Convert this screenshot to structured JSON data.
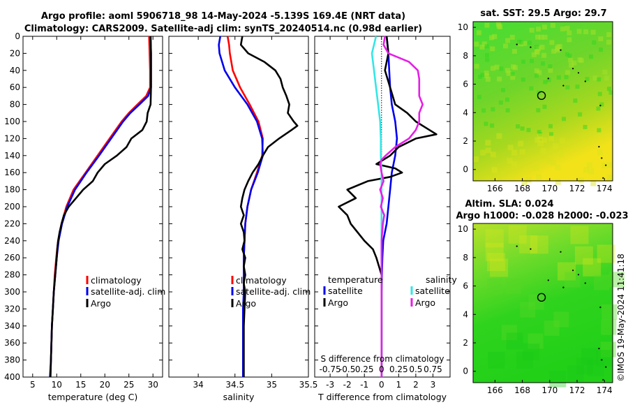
{
  "title_line1": "Argo profile: aoml 5906718_98 14-May-2024 -5.139S 169.4E (NRT data)",
  "title_line2": "Climatology: CARS2009. Satellite-adj clim: synTS_20240514.nc (0.98d earlier)",
  "timestamp": "©IMOS 19-May-2024 11:41:18",
  "colors": {
    "red": "#ff0000",
    "blue": "#0000ee",
    "black": "#000000",
    "cyan": "#33e6e6",
    "magenta": "#e61ee6"
  },
  "chart_data": [
    {
      "id": "temperature",
      "type": "line",
      "xlabel": "temperature (deg C)",
      "xlim": [
        3,
        32
      ],
      "xticks": [
        5,
        10,
        15,
        20,
        25,
        30
      ],
      "xtick_labels": [
        "5",
        "10",
        "15",
        "20",
        "25",
        "30"
      ],
      "ylim": [
        0,
        400
      ],
      "yticks": [
        0,
        20,
        40,
        60,
        80,
        100,
        120,
        140,
        160,
        180,
        200,
        220,
        240,
        260,
        280,
        300,
        320,
        340,
        360,
        380,
        400
      ],
      "ytick_labels": [
        "0",
        "20",
        "40",
        "60",
        "80",
        "100",
        "120",
        "140",
        "160",
        "180",
        "200",
        "220",
        "240",
        "260",
        "280",
        "300",
        "320",
        "340",
        "360",
        "380",
        "400"
      ],
      "legend": [
        "climatology",
        "satellite-adj. clim",
        "Argo"
      ],
      "series": [
        {
          "name": "climatology",
          "color": "red",
          "depth": [
            0,
            20,
            40,
            60,
            70,
            80,
            90,
            100,
            120,
            140,
            160,
            180,
            200,
            220,
            240,
            260,
            280,
            300,
            320,
            340,
            360,
            380,
            400
          ],
          "values": [
            29.2,
            29.3,
            29.4,
            29.4,
            28.6,
            26.8,
            25.0,
            23.5,
            21.0,
            18.5,
            16.0,
            13.5,
            12.0,
            11.0,
            10.3,
            9.9,
            9.6,
            9.4,
            9.2,
            9.0,
            8.9,
            8.8,
            8.7
          ]
        },
        {
          "name": "satellite-adj. clim",
          "color": "blue",
          "depth": [
            0,
            20,
            40,
            60,
            70,
            80,
            90,
            100,
            120,
            140,
            160,
            180,
            200,
            220,
            240,
            260,
            280,
            300,
            320,
            340,
            360,
            380,
            400
          ],
          "values": [
            29.5,
            29.6,
            29.6,
            29.6,
            29.0,
            27.2,
            25.3,
            23.8,
            21.3,
            18.8,
            16.2,
            13.8,
            12.2,
            11.1,
            10.4,
            10.0,
            9.7,
            9.4,
            9.2,
            9.0,
            8.9,
            8.8,
            8.6
          ]
        },
        {
          "name": "Argo",
          "color": "black",
          "depth": [
            0,
            20,
            40,
            60,
            80,
            90,
            100,
            110,
            120,
            130,
            140,
            150,
            160,
            170,
            180,
            190,
            200,
            210,
            220,
            230,
            240,
            250,
            260,
            280,
            300,
            320,
            340,
            360,
            380,
            400
          ],
          "values": [
            29.5,
            29.6,
            29.6,
            29.6,
            29.5,
            28.9,
            28.7,
            27.8,
            25.5,
            24.5,
            22.5,
            20.0,
            18.5,
            17.5,
            15.5,
            14.0,
            12.5,
            11.5,
            11.0,
            10.6,
            10.3,
            10.1,
            10.0,
            9.7,
            9.4,
            9.2,
            9.0,
            8.9,
            8.8,
            8.7
          ]
        }
      ]
    },
    {
      "id": "salinity",
      "type": "line",
      "xlabel": "salinity",
      "xlim": [
        33.6,
        35.5
      ],
      "xticks": [
        34,
        34.5,
        35,
        35.5
      ],
      "xtick_labels": [
        "34",
        "34.5",
        "35",
        "35.5"
      ],
      "ylim": [
        0,
        400
      ],
      "legend": [
        "climatology",
        "satellite-adj. clim",
        "Argo"
      ],
      "series": [
        {
          "name": "climatology",
          "color": "red",
          "depth": [
            0,
            10,
            20,
            40,
            60,
            80,
            100,
            120,
            140,
            160,
            180,
            200,
            220,
            240,
            260,
            280,
            300,
            320,
            340,
            360,
            380,
            400
          ],
          "values": [
            34.4,
            34.42,
            34.43,
            34.47,
            34.57,
            34.7,
            34.82,
            34.88,
            34.87,
            34.8,
            34.72,
            34.67,
            34.64,
            34.63,
            34.62,
            34.62,
            34.62,
            34.62,
            34.61,
            34.61,
            34.61,
            34.61
          ]
        },
        {
          "name": "satellite-adj. clim",
          "color": "blue",
          "depth": [
            0,
            10,
            20,
            40,
            60,
            80,
            100,
            120,
            140,
            160,
            180,
            200,
            220,
            240,
            260,
            280,
            300,
            320,
            340,
            360,
            380,
            400
          ],
          "values": [
            34.3,
            34.28,
            34.29,
            34.36,
            34.5,
            34.67,
            34.8,
            34.87,
            34.88,
            34.81,
            34.72,
            34.67,
            34.64,
            34.63,
            34.62,
            34.62,
            34.62,
            34.61,
            34.61,
            34.61,
            34.61,
            34.61
          ]
        },
        {
          "name": "Argo",
          "color": "black",
          "depth": [
            0,
            10,
            20,
            30,
            40,
            50,
            60,
            70,
            80,
            90,
            100,
            105,
            110,
            120,
            130,
            140,
            150,
            160,
            170,
            180,
            190,
            200,
            210,
            220,
            230,
            240,
            250,
            260,
            270,
            280,
            290,
            300,
            320,
            340,
            360,
            380,
            400
          ],
          "values": [
            34.6,
            34.58,
            34.68,
            34.9,
            35.05,
            35.12,
            35.15,
            35.2,
            35.24,
            35.22,
            35.3,
            35.35,
            35.27,
            35.1,
            34.95,
            34.88,
            34.82,
            34.74,
            34.68,
            34.63,
            34.6,
            34.58,
            34.62,
            34.58,
            34.62,
            34.63,
            34.6,
            34.64,
            34.62,
            34.64,
            34.62,
            34.64,
            34.63,
            34.62,
            34.62,
            34.62,
            34.62
          ]
        }
      ]
    },
    {
      "id": "difference",
      "type": "line",
      "xlabel": "T difference from climatology",
      "top_label": "S difference from climatology",
      "top_tick_labels": [
        "-0.75",
        "-0.5",
        "0.25",
        "0",
        "0.25",
        "0.5",
        "0.75"
      ],
      "xlim": [
        -3.9,
        4.0
      ],
      "xticks": [
        -3,
        -2,
        -1,
        0,
        1,
        2,
        3
      ],
      "xtick_labels": [
        "-3",
        "-2",
        "-1",
        "0",
        "1",
        "2",
        "3"
      ],
      "ylim": [
        0,
        400
      ],
      "legend_temperature": {
        "title": "temperature",
        "items": [
          "satellite",
          "Argo"
        ]
      },
      "legend_salinity": {
        "title": "salinity",
        "items": [
          "satellite",
          "Argo"
        ]
      },
      "series": [
        {
          "name": "T satellite",
          "color": "blue",
          "depth": [
            0,
            20,
            40,
            60,
            80,
            100,
            120,
            140,
            160,
            180,
            200,
            220,
            240,
            260,
            280,
            300,
            320,
            340,
            360,
            380,
            400
          ],
          "values": [
            0.3,
            0.4,
            0.45,
            0.5,
            0.6,
            0.8,
            0.9,
            0.8,
            0.6,
            0.5,
            0.4,
            0.3,
            0.1,
            0.05,
            0.02,
            0,
            0,
            0,
            0,
            0,
            0
          ]
        },
        {
          "name": "T Argo",
          "color": "black",
          "depth": [
            0,
            20,
            40,
            60,
            80,
            90,
            100,
            110,
            115,
            120,
            130,
            140,
            150,
            155,
            160,
            165,
            170,
            180,
            190,
            200,
            210,
            220,
            240,
            250,
            260,
            280,
            300,
            320,
            340,
            360,
            380,
            400
          ],
          "values": [
            0.3,
            0.4,
            0.2,
            0.5,
            0.8,
            1.5,
            2.0,
            2.8,
            3.2,
            2.0,
            1.0,
            0.5,
            -0.3,
            0.8,
            1.2,
            0.5,
            -0.8,
            -2.0,
            -1.5,
            -2.5,
            -2.0,
            -1.8,
            -1.0,
            -0.5,
            -0.3,
            0,
            0,
            0,
            0,
            0,
            0,
            0
          ]
        },
        {
          "name": "S satellite",
          "color": "cyan",
          "depth": [
            0,
            20,
            40,
            60,
            80,
            100,
            120,
            140,
            160,
            180,
            200,
            220,
            240,
            260,
            280,
            300,
            320,
            340,
            360,
            380,
            400
          ],
          "values": [
            -0.08,
            -0.14,
            -0.11,
            -0.08,
            -0.05,
            -0.02,
            -0.01,
            -0.01,
            0,
            0,
            0,
            0,
            0,
            0,
            0,
            0,
            0,
            0,
            0,
            0,
            0
          ]
        },
        {
          "name": "S Argo",
          "color": "magenta",
          "depth": [
            0,
            5,
            10,
            20,
            30,
            40,
            50,
            60,
            70,
            80,
            90,
            100,
            110,
            120,
            130,
            140,
            145,
            150,
            160,
            170,
            180,
            190,
            200,
            210,
            220,
            240,
            260,
            280,
            300,
            320,
            340,
            360,
            380,
            400
          ],
          "values": [
            0.05,
            0.04,
            0.03,
            0.1,
            0.4,
            0.53,
            0.55,
            0.55,
            0.55,
            0.6,
            0.55,
            0.55,
            0.5,
            0.4,
            0.2,
            0.06,
            0,
            -0.02,
            0,
            0.03,
            -0.02,
            0.02,
            -0.01,
            0.04,
            0.02,
            0,
            0,
            0,
            0,
            0,
            0,
            0,
            0,
            0
          ]
        }
      ]
    },
    {
      "id": "sst_map",
      "type": "heatmap",
      "title": "sat. SST: 29.5 Argo: 29.7",
      "xlim": [
        164.4,
        174.6
      ],
      "xticks": [
        166,
        168,
        170,
        172,
        174
      ],
      "xtick_labels": [
        "166",
        "168",
        "170",
        "172",
        "174"
      ],
      "ylim": [
        -0.8,
        10.4
      ],
      "yticks": [
        0,
        2,
        4,
        6,
        8,
        10
      ],
      "ytick_labels": [
        "0",
        "2",
        "4",
        "6",
        "8",
        "10"
      ],
      "marker": {
        "lon": 169.4,
        "lat": 5.2
      }
    },
    {
      "id": "sla_map",
      "type": "heatmap",
      "title_line1": "Altim. SLA: 0.024",
      "title_line2": "Argo h1000: -0.028 h2000: -0.023",
      "xlim": [
        164.4,
        174.6
      ],
      "xticks": [
        166,
        168,
        170,
        172,
        174
      ],
      "xtick_labels": [
        "166",
        "168",
        "170",
        "172",
        "174"
      ],
      "ylim": [
        -0.8,
        10.4
      ],
      "yticks": [
        0,
        2,
        4,
        6,
        8,
        10
      ],
      "ytick_labels": [
        "0",
        "2",
        "4",
        "6",
        "8",
        "10"
      ],
      "marker": {
        "lon": 169.4,
        "lat": 5.2
      }
    }
  ]
}
